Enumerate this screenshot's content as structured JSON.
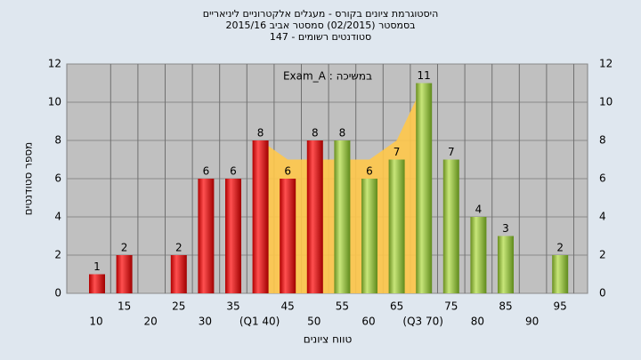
{
  "chart_data": {
    "type": "bar",
    "title": [
      "היסטוגרמת ציונים בקורס - מעגלים אלקטרוניים ליניאריים",
      "בסמסטר (02/2015) סמסטר אביב 2015/16",
      "סטודנטים רשומים - 147"
    ],
    "annotation": "במשיכה : Exam_A",
    "x_label": "טווח ציונים",
    "y_label": "מספר סטודנטים",
    "categories": [
      "10",
      "15",
      "20",
      "25",
      "30",
      "35",
      "(Q1 40)",
      "45",
      "50",
      "55",
      "60",
      "65",
      "(Q3 70)",
      "75",
      "80",
      "85",
      "90",
      "95"
    ],
    "values": [
      1,
      2,
      0,
      2,
      6,
      6,
      8,
      6,
      8,
      8,
      6,
      7,
      11,
      7,
      4,
      3,
      0,
      2
    ],
    "colors": [
      "red",
      "red",
      "red",
      "red",
      "red",
      "red",
      "red",
      "red",
      "red",
      "green",
      "green",
      "green",
      "green",
      "green",
      "green",
      "green",
      "green",
      "green"
    ],
    "area": {
      "color": "#ffc84a",
      "values": [
        null,
        null,
        null,
        null,
        null,
        null,
        8,
        7,
        7,
        7,
        7,
        8,
        11,
        null,
        null,
        null,
        null,
        null
      ]
    },
    "ylim": [
      0,
      12
    ],
    "yticks": [
      0,
      2,
      4,
      6,
      8,
      10,
      12
    ],
    "y2lim": [
      0,
      12
    ],
    "y2ticks": [
      0,
      2,
      4,
      6,
      8,
      10,
      12
    ],
    "grid": true
  }
}
